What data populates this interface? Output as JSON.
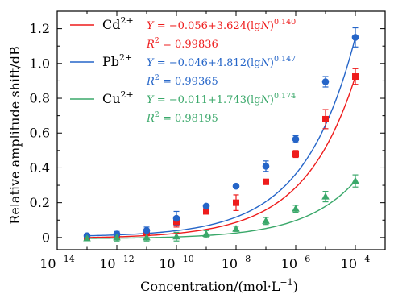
{
  "chart_data": {
    "type": "scatter",
    "title": "",
    "xlabel": "Concentration/(mol·L",
    "xlabel_sup": "−1",
    "xlabel_end": ")",
    "ylabel": "Relative amplitude shift/dB",
    "x_scale": "log",
    "xlim": [
      1e-14,
      0.001
    ],
    "ylim": [
      -0.07,
      1.3
    ],
    "x_ticks": [
      1e-14,
      1e-12,
      1e-10,
      1e-08,
      1e-06,
      0.0001
    ],
    "x_tick_labels": [
      {
        "base": "10",
        "exp": "−14"
      },
      {
        "base": "10",
        "exp": "−12"
      },
      {
        "base": "10",
        "exp": "−10"
      },
      {
        "base": "10",
        "exp": "−8"
      },
      {
        "base": "10",
        "exp": "−6"
      },
      {
        "base": "10",
        "exp": "−4"
      }
    ],
    "y_ticks": [
      0,
      0.2,
      0.4,
      0.6,
      0.8,
      1.0,
      1.2
    ],
    "y_tick_labels": [
      "0",
      "0.2",
      "0.4",
      "0.6",
      "0.8",
      "1.0",
      "1.2"
    ],
    "grid": false,
    "legend_position": "top-left",
    "x": [
      1e-13,
      1e-12,
      1e-11,
      1e-10,
      1e-09,
      1e-08,
      1e-07,
      1e-06,
      1e-05,
      0.0001
    ],
    "series": [
      {
        "name": "Cd",
        "name_sup": "2+",
        "color": "#ee1c1c",
        "marker": "square",
        "values": [
          0.0,
          0.01,
          0.03,
          0.09,
          0.15,
          0.2,
          0.32,
          0.48,
          0.68,
          0.925
        ],
        "errors": [
          0.01,
          0.02,
          0.02,
          0.03,
          0.01,
          0.045,
          0.015,
          0.02,
          0.055,
          0.045
        ],
        "fit": {
          "intercept": -0.056,
          "coef": 3.624,
          "exponent": 0.14
        },
        "equation": {
          "y": "Y",
          "eq": " = −0.056+3.624(lg",
          "n": "N",
          "close": ")",
          "exp": "0.140"
        },
        "r2": {
          "r": "R",
          "sup": "2",
          "eq": " = 0.99836"
        }
      },
      {
        "name": "Pb",
        "name_sup": "2+",
        "color": "#2565c8",
        "marker": "circle",
        "values": [
          0.01,
          0.02,
          0.04,
          0.11,
          0.18,
          0.295,
          0.41,
          0.565,
          0.895,
          1.15
        ],
        "errors": [
          0.01,
          0.015,
          0.02,
          0.04,
          0.01,
          0.01,
          0.03,
          0.02,
          0.03,
          0.055
        ],
        "fit": {
          "intercept": -0.046,
          "coef": 4.812,
          "exponent": 0.147
        },
        "equation": {
          "y": "Y",
          "eq": " = −0.046+4.812(lg",
          "n": "N",
          "close": ")",
          "exp": "0.147"
        },
        "r2": {
          "r": "R",
          "sup": "2",
          "eq": " = 0.99365"
        }
      },
      {
        "name": "Cu",
        "name_sup": "2+",
        "color": "#3aa86a",
        "marker": "triangle",
        "values": [
          -0.005,
          0.0,
          0.0,
          0.005,
          0.02,
          0.05,
          0.095,
          0.165,
          0.235,
          0.325
        ],
        "errors": [
          0.01,
          0.02,
          0.02,
          0.025,
          0.02,
          0.015,
          0.02,
          0.02,
          0.03,
          0.035
        ],
        "fit": {
          "intercept": -0.011,
          "coef": 1.743,
          "exponent": 0.174
        },
        "equation": {
          "y": "Y",
          "eq": " = −0.011+1.743(lg",
          "n": "N",
          "close": ")",
          "exp": "0.174"
        },
        "r2": {
          "r": "R",
          "sup": "2",
          "eq": " = 0.98195"
        }
      }
    ]
  }
}
